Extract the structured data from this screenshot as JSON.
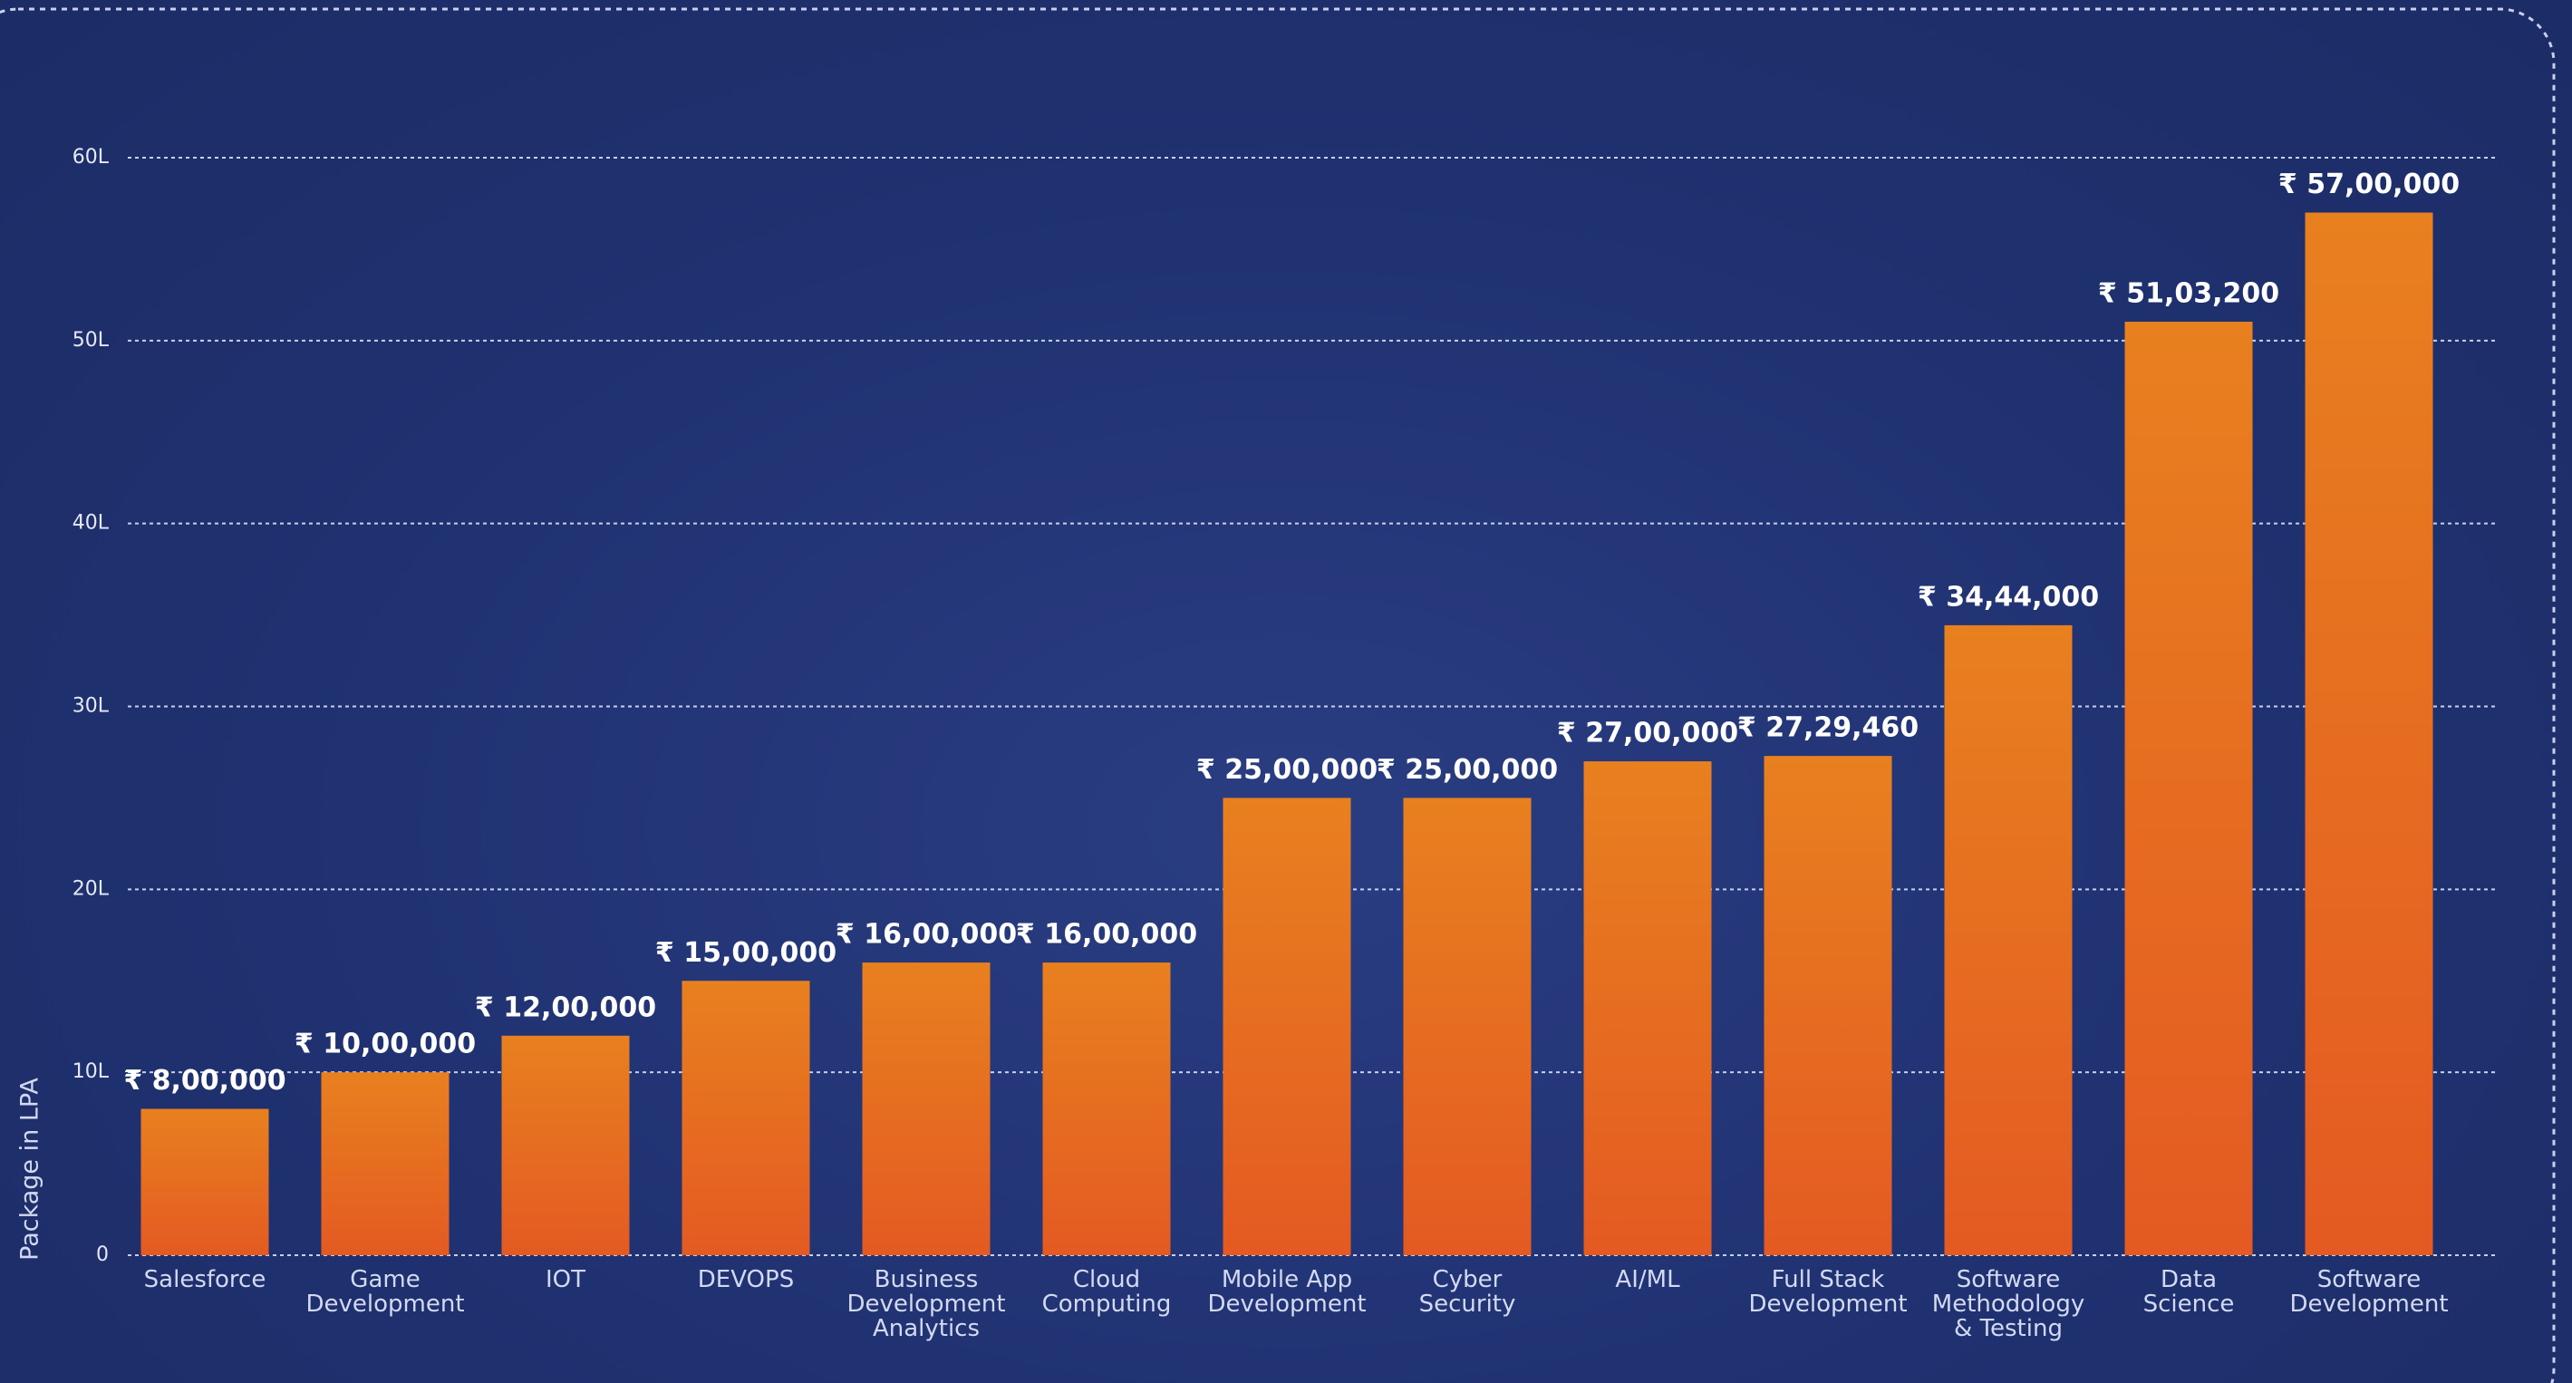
{
  "chart_data": {
    "type": "bar",
    "y_label": "Package in LPA",
    "categories": [
      "Salesforce",
      "Game\nDevelopment",
      "IOT",
      "DEVOPS",
      "Business\nDevelopment\nAnalytics",
      "Cloud\nComputing",
      "Mobile App\nDevelopment",
      "Cyber\nSecurity",
      "AI/ML",
      "Full Stack\nDevelopment",
      "Software\nMethodology\n& Testing",
      "Data\nScience",
      "Software\nDevelopment"
    ],
    "values": [
      800000,
      1000000,
      1200000,
      1500000,
      1600000,
      1600000,
      2500000,
      2500000,
      2700000,
      2729460,
      3444000,
      5103200,
      5700000
    ],
    "value_labels": [
      "₹ 8,00,000",
      "₹ 10,00,000",
      "₹ 12,00,000",
      "₹ 15,00,000",
      "₹ 16,00,000",
      "₹ 16,00,000",
      "₹ 25,00,000",
      "₹ 25,00,000",
      "₹ 27,00,000",
      "₹ 27,29,460",
      "₹ 34,44,000",
      "₹ 51,03,200",
      "₹ 57,00,000"
    ],
    "color": "#e8801f",
    "ylim": [
      0,
      6000000
    ],
    "yticks": [
      0,
      {
        "value": 1000000,
        "label": "10L"
      },
      {
        "value": 2000000,
        "label": "20L"
      },
      {
        "value": 3000000,
        "label": "30L"
      },
      {
        "value": 4000000,
        "label": "40L"
      },
      {
        "value": 5000000,
        "label": "50L"
      },
      {
        "value": 6000000,
        "label": "60L"
      }
    ],
    "grid": true
  }
}
